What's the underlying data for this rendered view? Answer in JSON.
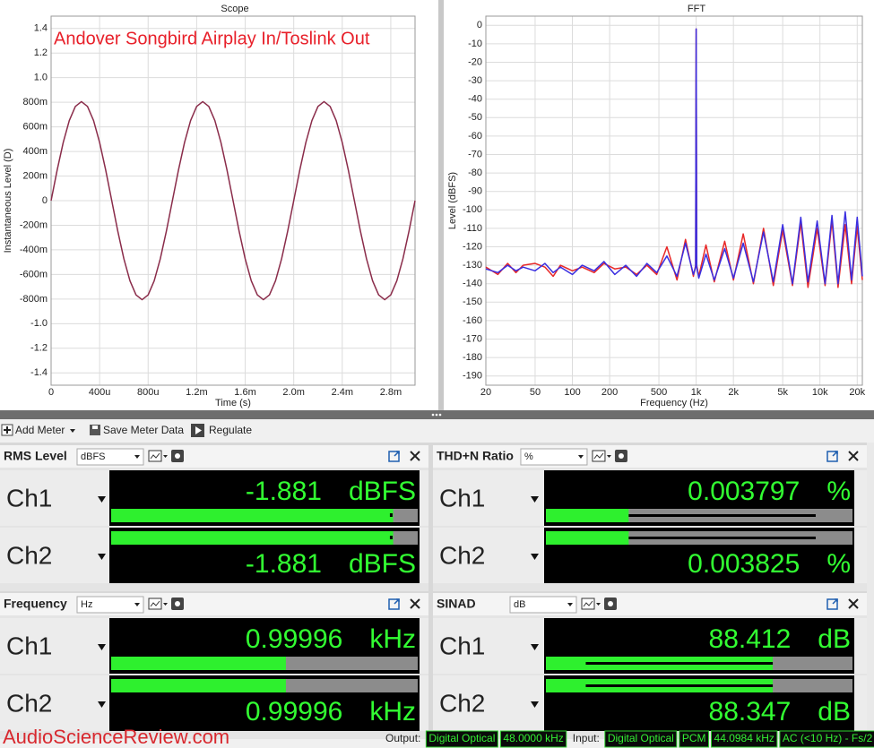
{
  "chart_data": [
    {
      "type": "line",
      "title": "Scope",
      "annotation": "Andover Songbird Airplay In/Toslink Out",
      "x_label": "Time (s)",
      "y_label": "Instantaneous Level (D)",
      "xlim": [
        0,
        0.003
      ],
      "xticks": [
        0,
        {
          "value": 0.0004,
          "label": "400u"
        },
        {
          "value": 0.0008,
          "label": "800u"
        },
        {
          "value": 0.0012,
          "label": "1.2m"
        },
        {
          "value": 0.0016,
          "label": "1.6m"
        },
        {
          "value": 0.002,
          "label": "2.0m"
        },
        {
          "value": 0.0024,
          "label": "2.4m"
        },
        {
          "value": 0.0028,
          "label": "2.8m"
        }
      ],
      "ylim": [
        -1.5,
        1.5
      ],
      "yticks": [
        1.4,
        1.2,
        {
          "value": 1,
          "label": "1.0"
        },
        {
          "value": 0.8,
          "label": "800m"
        },
        {
          "value": 0.6,
          "label": "600m"
        },
        {
          "value": 0.4,
          "label": "400m"
        },
        {
          "value": 0.2,
          "label": "200m"
        },
        0,
        {
          "value": -0.2,
          "label": "-200m"
        },
        {
          "value": -0.4,
          "label": "-400m"
        },
        {
          "value": -0.6,
          "label": "-600m"
        },
        {
          "value": -0.8,
          "label": "-800m"
        },
        {
          "value": -1,
          "label": "-1.0"
        },
        -1.2,
        -1.4
      ],
      "grid": true,
      "x": [
        0,
        5e-05,
        0.0001,
        0.00015,
        0.0002,
        0.00025,
        0.0003,
        0.00035,
        0.0004,
        0.00045,
        0.0005,
        0.00055,
        0.0006,
        0.00065,
        0.0007,
        0.00075,
        0.0008,
        0.00085,
        0.0009,
        0.00095,
        0.001,
        0.00105,
        0.0011,
        0.00115,
        0.0012,
        0.00125,
        0.0013,
        0.00135,
        0.0014,
        0.00145,
        0.0015,
        0.00155,
        0.0016,
        0.00165,
        0.0017,
        0.00175,
        0.0018,
        0.00185,
        0.0019,
        0.00195,
        0.002,
        0.00205,
        0.0021,
        0.00215,
        0.0022,
        0.00225,
        0.0023,
        0.00235,
        0.0024,
        0.00245,
        0.0025,
        0.00255,
        0.0026,
        0.00265,
        0.0027,
        0.00275,
        0.0028,
        0.00285,
        0.0029,
        0.00295,
        0.003
      ],
      "series": [
        {
          "color": "#8a2c4a",
          "values": [
            0,
            0.249,
            0.473,
            0.651,
            0.766,
            0.805,
            0.766,
            0.651,
            0.473,
            0.249,
            0,
            -0.249,
            -0.473,
            -0.651,
            -0.766,
            -0.805,
            -0.766,
            -0.651,
            -0.473,
            -0.249,
            0,
            0.249,
            0.473,
            0.651,
            0.766,
            0.805,
            0.766,
            0.651,
            0.473,
            0.249,
            0,
            -0.249,
            -0.473,
            -0.651,
            -0.766,
            -0.805,
            -0.766,
            -0.651,
            -0.473,
            -0.249,
            0,
            0.249,
            0.473,
            0.651,
            0.766,
            0.805,
            0.766,
            0.651,
            0.473,
            0.249,
            0,
            -0.249,
            -0.473,
            -0.651,
            -0.766,
            -0.805,
            -0.766,
            -0.651,
            -0.473,
            -0.249,
            0
          ]
        }
      ]
    },
    {
      "type": "line",
      "title": "FFT",
      "x_label": "Frequency (Hz)",
      "y_label": "Level (dBFS)",
      "xscale": "log",
      "xlim": [
        20,
        22000
      ],
      "xticks": [
        20,
        50,
        100,
        200,
        500,
        {
          "value": 1000,
          "label": "1k"
        },
        {
          "value": 2000,
          "label": "2k"
        },
        {
          "value": 5000,
          "label": "5k"
        },
        {
          "value": 10000,
          "label": "10k"
        },
        {
          "value": 20000,
          "label": "20k"
        }
      ],
      "ylim": [
        -195,
        5
      ],
      "yticks": [
        0,
        -10,
        -20,
        -30,
        -40,
        -50,
        -60,
        -70,
        -80,
        -90,
        -100,
        -110,
        -120,
        -130,
        -140,
        -150,
        -160,
        -170,
        -180,
        -190
      ],
      "grid": true,
      "x": [
        20,
        25,
        30,
        35,
        40,
        50,
        60,
        70,
        80,
        100,
        120,
        150,
        180,
        220,
        270,
        330,
        400,
        480,
        580,
        700,
        820,
        950,
        990,
        1000,
        1010,
        1050,
        1200,
        1400,
        1700,
        2000,
        2400,
        2900,
        3500,
        4200,
        5000,
        6000,
        7000,
        8000,
        9500,
        11000,
        12500,
        14000,
        16000,
        18000,
        20000,
        22000
      ],
      "series": [
        {
          "color": "#e82828",
          "values": [
            -131,
            -135,
            -129,
            -134,
            -130,
            -129,
            -131,
            -136,
            -130,
            -133,
            -131,
            -134,
            -129,
            -132,
            -131,
            -135,
            -130,
            -135,
            -120,
            -138,
            -116,
            -136,
            -130,
            -2,
            -130,
            -136,
            -119,
            -139,
            -117,
            -138,
            -113,
            -140,
            -110,
            -141,
            -111,
            -141,
            -107,
            -142,
            -110,
            -141,
            -106,
            -142,
            -108,
            -140,
            -109,
            -138
          ]
        },
        {
          "color": "#3a2ee0",
          "values": [
            -132,
            -134,
            -130,
            -133,
            -131,
            -133,
            -129,
            -134,
            -131,
            -135,
            -130,
            -133,
            -128,
            -135,
            -130,
            -136,
            -129,
            -134,
            -125,
            -136,
            -118,
            -135,
            -131,
            -2,
            -131,
            -137,
            -124,
            -138,
            -121,
            -137,
            -118,
            -139,
            -112,
            -139,
            -108,
            -140,
            -104,
            -139,
            -106,
            -140,
            -103,
            -140,
            -101,
            -138,
            -104,
            -136
          ]
        }
      ]
    }
  ],
  "toolbar": {
    "buttons": [
      "Add Meter",
      "Save Meter Data",
      "Regulate"
    ]
  },
  "meters": [
    {
      "title": "RMS Level",
      "unit": "dBFS",
      "channels": [
        {
          "name": "Ch1",
          "value": -1.881,
          "unit": "dBFS"
        },
        {
          "name": "Ch2",
          "value": -1.881,
          "unit": "dBFS"
        }
      ]
    },
    {
      "title": "THD+N Ratio",
      "unit": "%",
      "channels": [
        {
          "name": "Ch1",
          "value": 0.003797,
          "unit": "%"
        },
        {
          "name": "Ch2",
          "value": 0.003825,
          "unit": "%"
        }
      ]
    },
    {
      "title": "Frequency",
      "unit": "Hz",
      "channels": [
        {
          "name": "Ch1",
          "value": 0.99996,
          "unit": "kHz"
        },
        {
          "name": "Ch2",
          "value": 0.99996,
          "unit": "kHz"
        }
      ]
    },
    {
      "title": "SINAD",
      "unit": "dB",
      "channels": [
        {
          "name": "Ch1",
          "value": 88.412,
          "unit": "dB"
        },
        {
          "name": "Ch2",
          "value": 88.347,
          "unit": "dB"
        }
      ]
    }
  ],
  "status_bar": {
    "watermark": "AudioScienceReview.com",
    "output_label": "Output:",
    "output": [
      "Digital Optical",
      "48.0000 kHz"
    ],
    "input_label": "Input:",
    "input": [
      "Digital Optical",
      "PCM",
      "44.0984 kHz",
      "AC (<10 Hz) - Fs/2"
    ]
  }
}
